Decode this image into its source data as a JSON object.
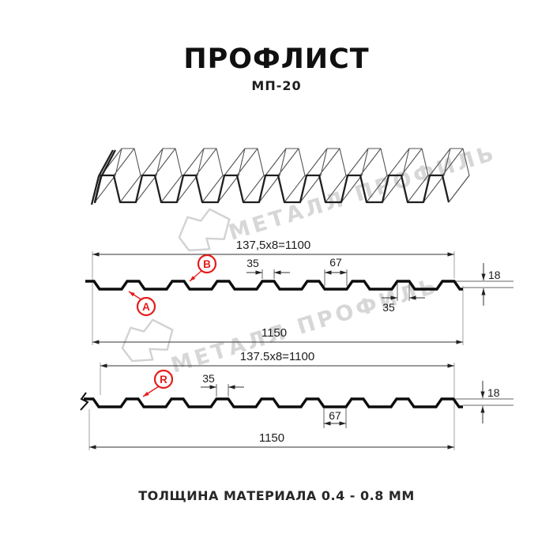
{
  "header": {
    "title": "ПРОФЛИСТ",
    "subtitle": "МП-20"
  },
  "footer": {
    "note": "ТОЛЩИНА МАТЕРИАЛА 0.4 - 0.8 ММ"
  },
  "watermark": {
    "brand": "МЕТАЛЛ ПРОФИЛЬ"
  },
  "colors": {
    "accent_red": "#e31d1a",
    "line_black": "#0d0d0d",
    "watermark_gray": "#d7d7d7"
  },
  "section_top": {
    "dim_pitch_total": "137,5x8=1100",
    "dim_crest_width": "35",
    "dim_valley_width": "67",
    "dim_height": "18",
    "dim_overall_width": "1150",
    "dim_crest_width_bottom": "35",
    "label_a": "A",
    "label_b": "B"
  },
  "section_bottom": {
    "dim_pitch_total": "137.5x8=1100",
    "dim_crest_width": "35",
    "dim_valley_width": "67",
    "dim_height": "18",
    "dim_overall_width": "1150",
    "label_r": "R"
  }
}
